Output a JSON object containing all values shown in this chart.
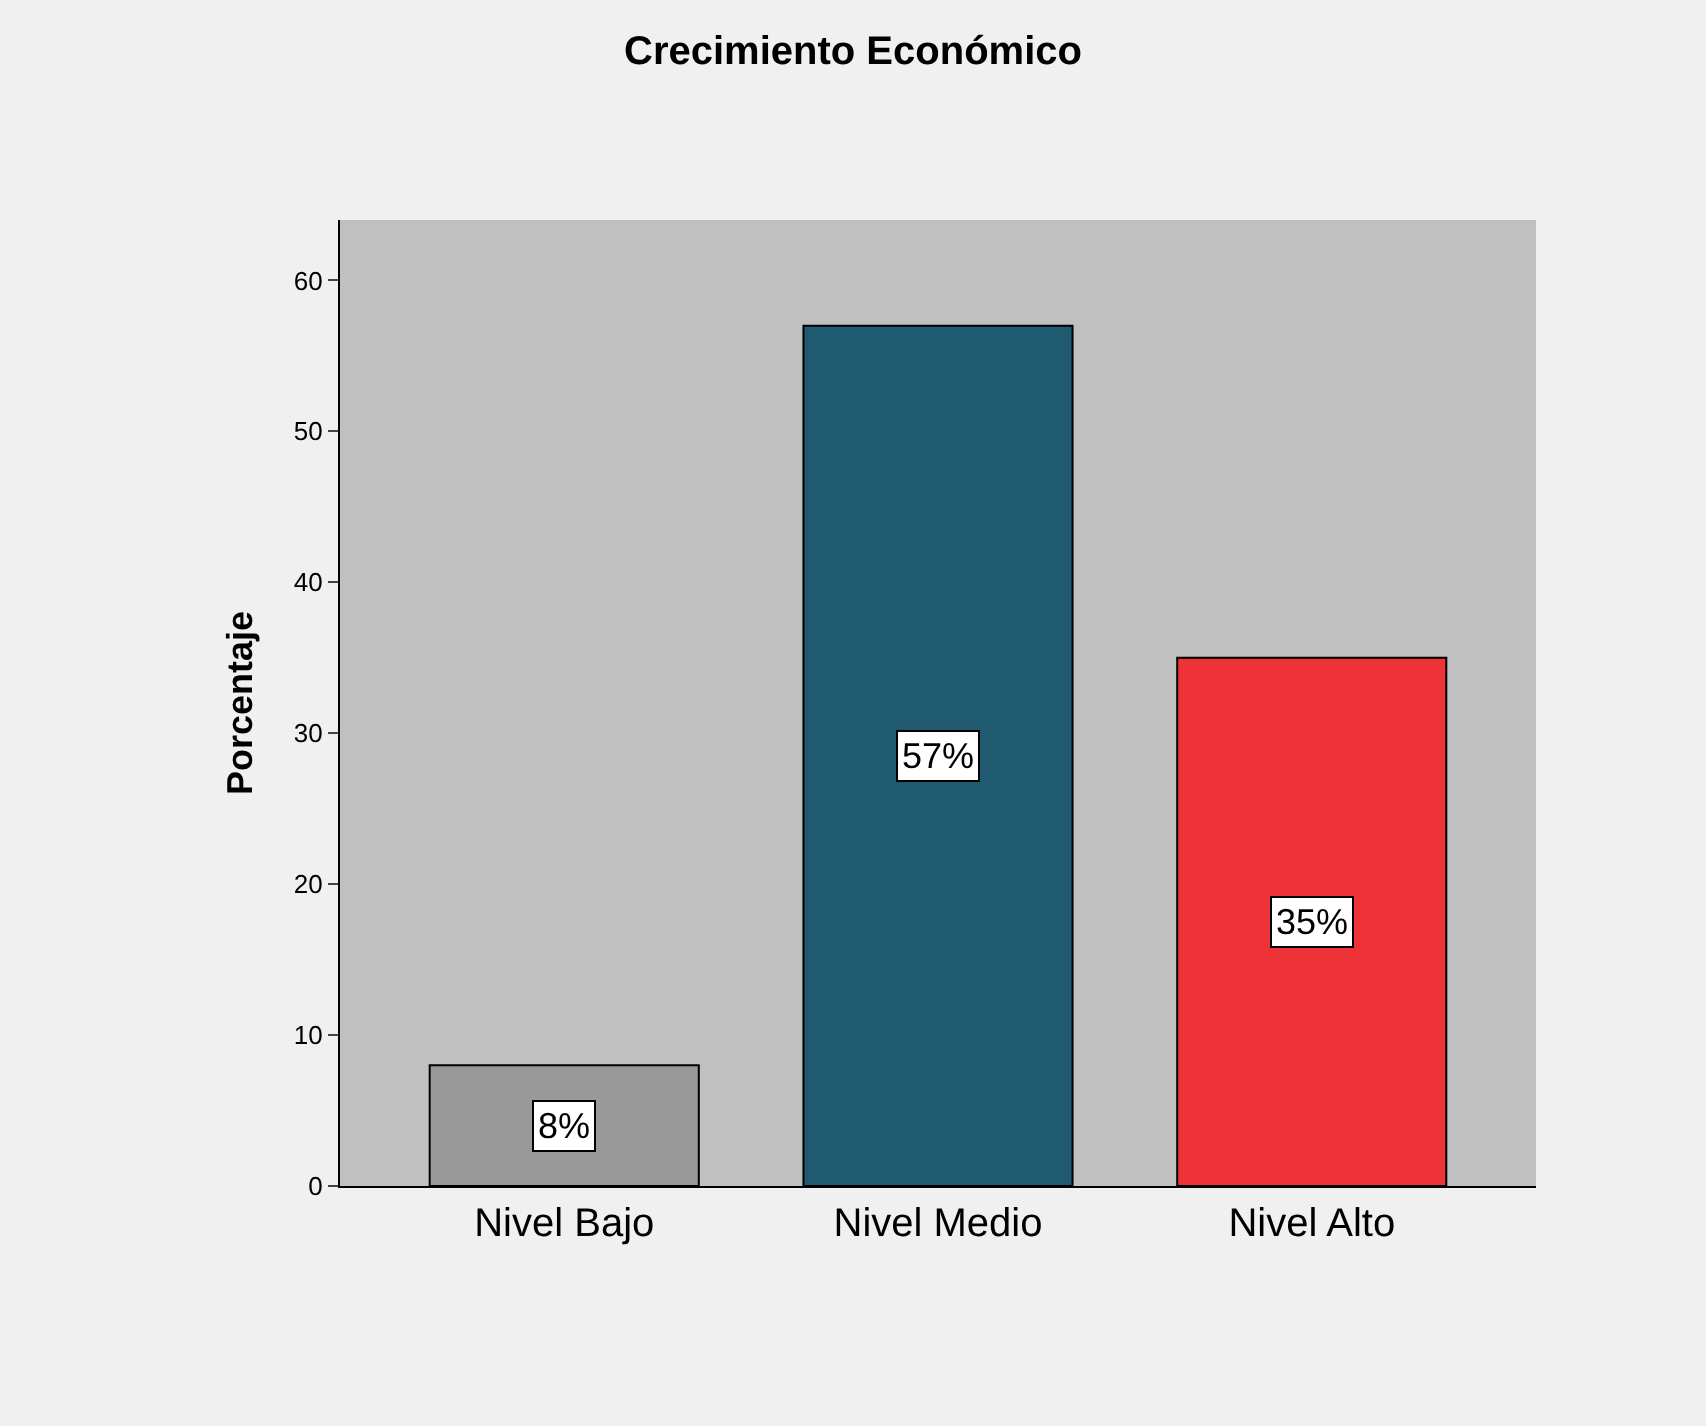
{
  "chart_data": {
    "type": "bar",
    "title": "Crecimiento Económico",
    "ylabel": "Porcentaje",
    "categories": [
      "Nivel Bajo",
      "Nivel Medio",
      "Nivel Alto"
    ],
    "values": [
      8,
      57,
      35
    ],
    "colors": [
      "#999999",
      "#1f5a70",
      "#ee3338"
    ],
    "value_labels": [
      "8%",
      "57%",
      "35%"
    ],
    "ylim": [
      0,
      64
    ],
    "yticks": [
      0,
      10,
      20,
      30,
      40,
      50,
      60
    ],
    "grid": false
  }
}
